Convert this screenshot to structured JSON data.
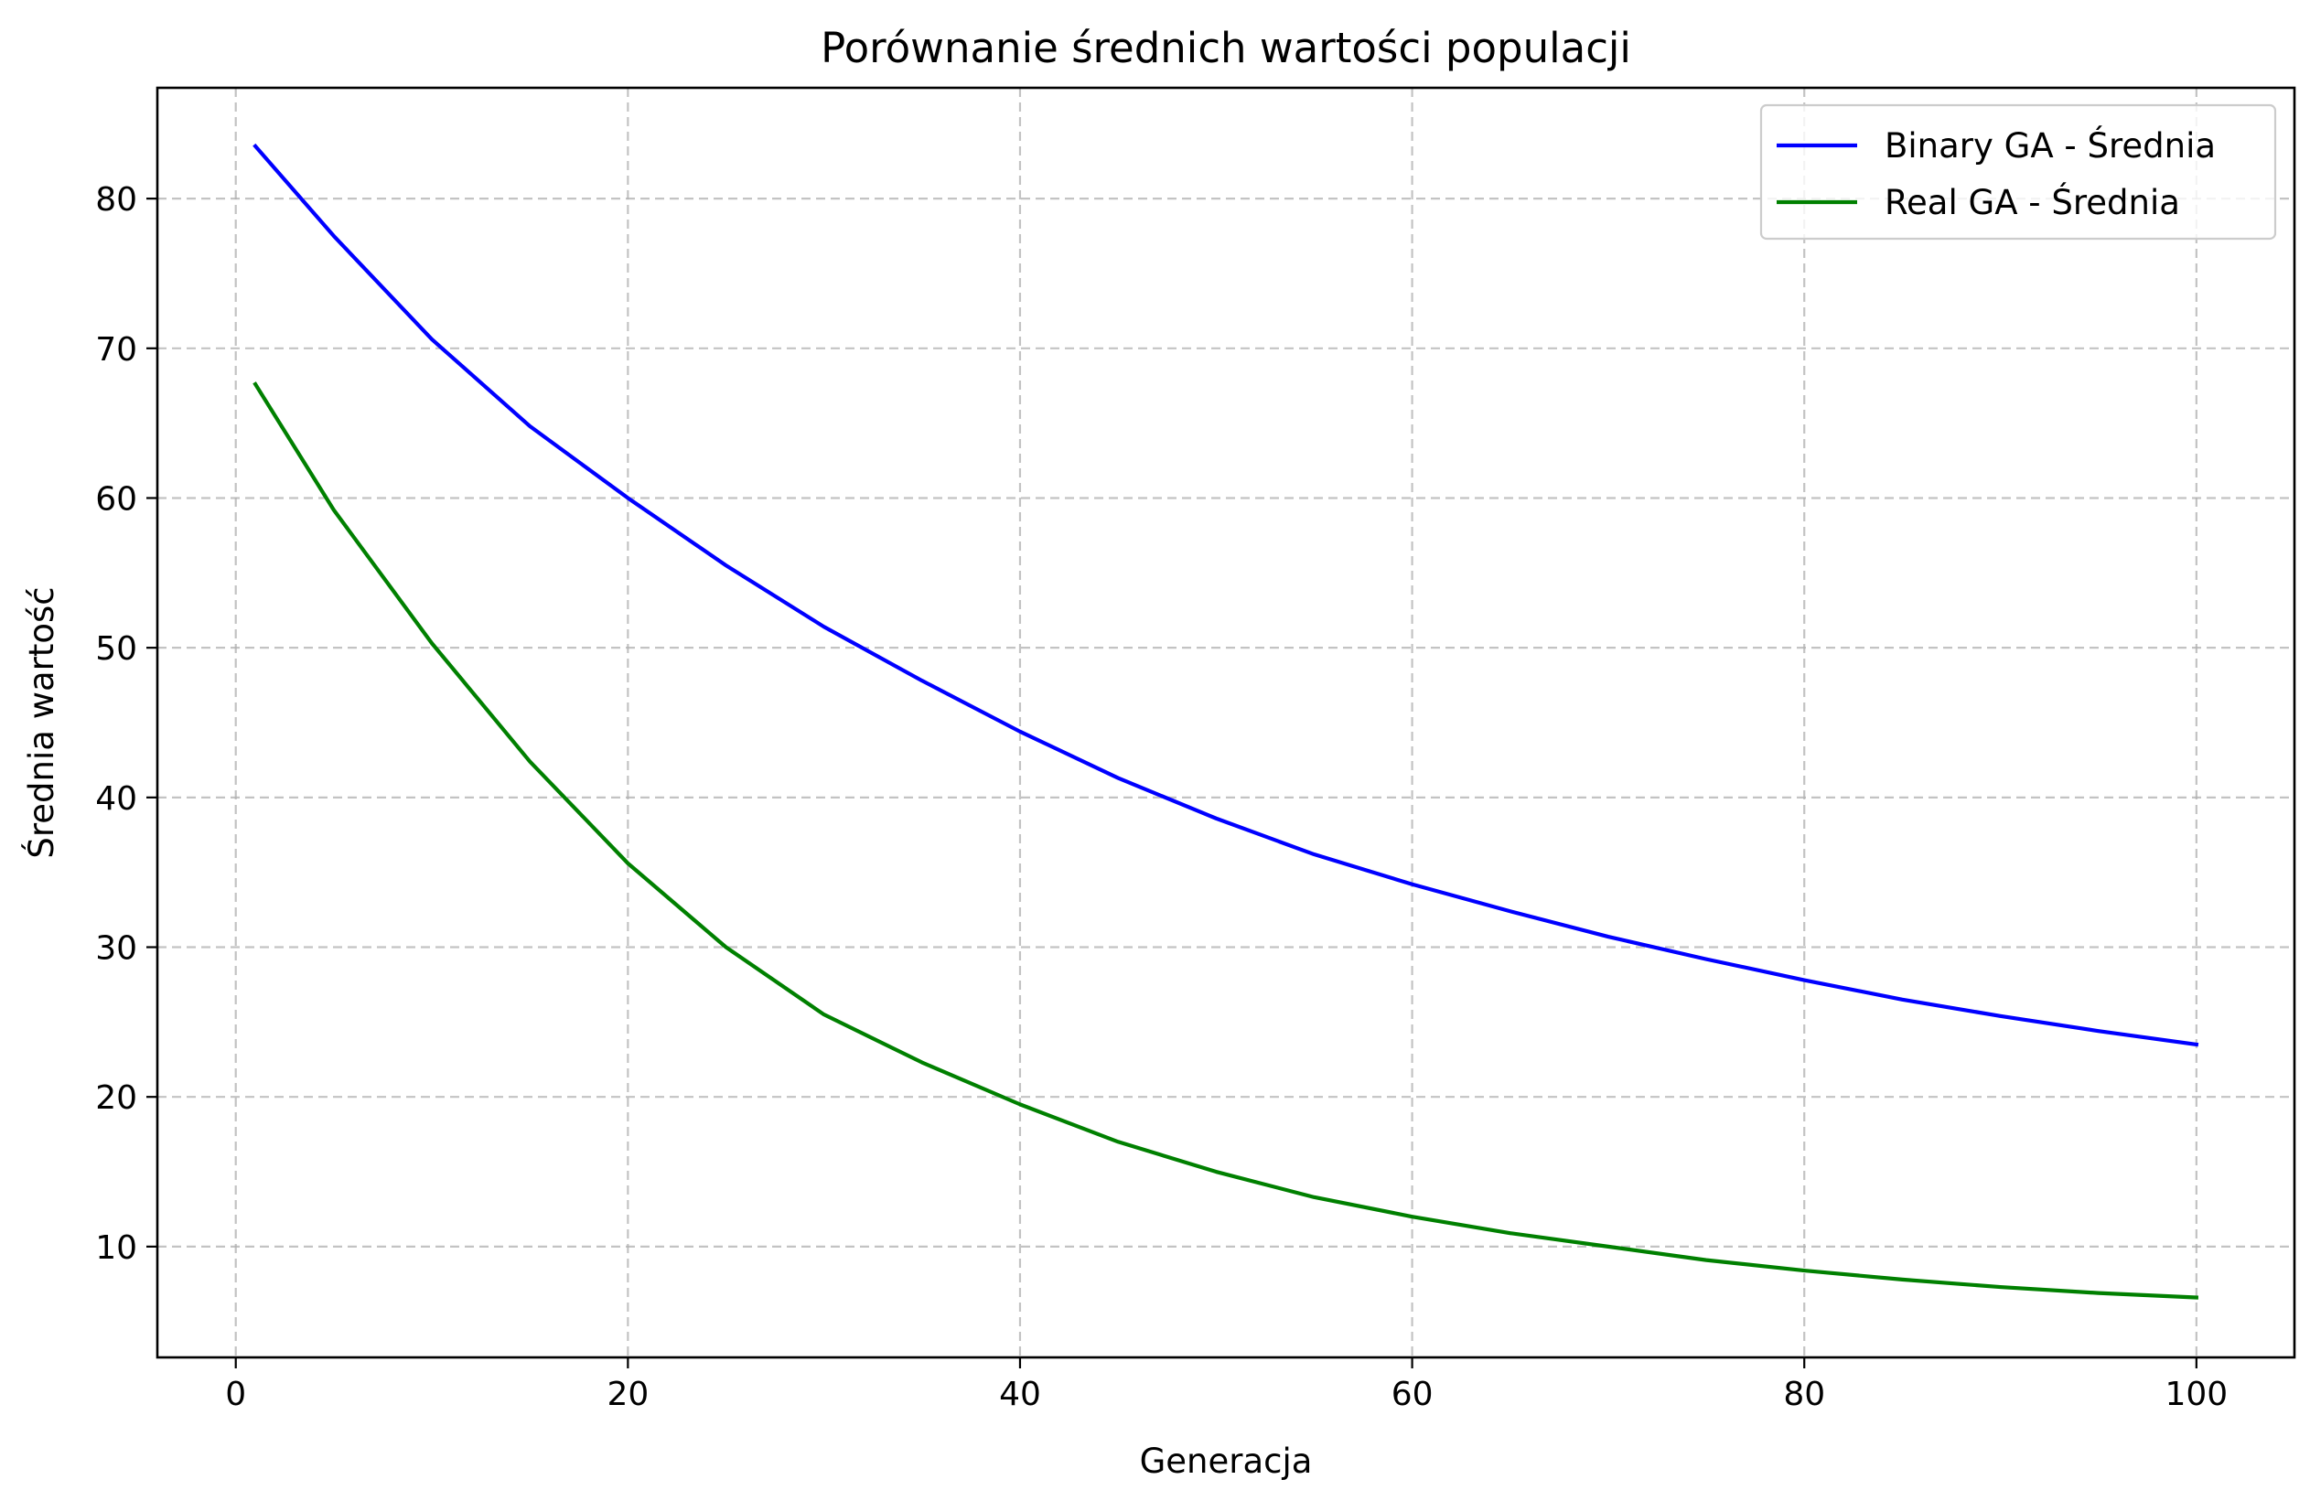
{
  "chart_data": {
    "type": "line",
    "title": "Porównanie średnich wartości populacji",
    "xlabel": "Generacja",
    "ylabel": "Średnia wartość",
    "xlim": [
      -4,
      105
    ],
    "ylim": [
      2.6,
      87.4
    ],
    "xticks": [
      0,
      20,
      40,
      60,
      80,
      100
    ],
    "xtick_labels": [
      "0",
      "20",
      "40",
      "60",
      "80",
      "100"
    ],
    "yticks": [
      10,
      20,
      30,
      40,
      50,
      60,
      70,
      80
    ],
    "ytick_labels": [
      "10",
      "20",
      "30",
      "40",
      "50",
      "60",
      "70",
      "80"
    ],
    "grid": true,
    "legend_position": "top-right",
    "x": [
      1,
      5,
      10,
      15,
      20,
      25,
      30,
      35,
      40,
      45,
      50,
      55,
      60,
      65,
      70,
      75,
      80,
      85,
      90,
      95,
      100
    ],
    "series": [
      {
        "name": "Binary GA - Średnia",
        "color": "#0000ff",
        "values": [
          83.5,
          77.5,
          70.6,
          64.8,
          60.0,
          55.5,
          51.4,
          47.8,
          44.4,
          41.3,
          38.6,
          36.2,
          34.2,
          32.4,
          30.7,
          29.2,
          27.8,
          26.5,
          25.4,
          24.4,
          23.5
        ]
      },
      {
        "name": "Real GA - Średnia",
        "color": "#008000",
        "values": [
          67.6,
          59.2,
          50.3,
          42.4,
          35.6,
          30.0,
          25.5,
          22.3,
          19.5,
          17.0,
          15.0,
          13.3,
          12.0,
          10.9,
          10.0,
          9.1,
          8.4,
          7.8,
          7.3,
          6.9,
          6.6
        ]
      }
    ]
  }
}
